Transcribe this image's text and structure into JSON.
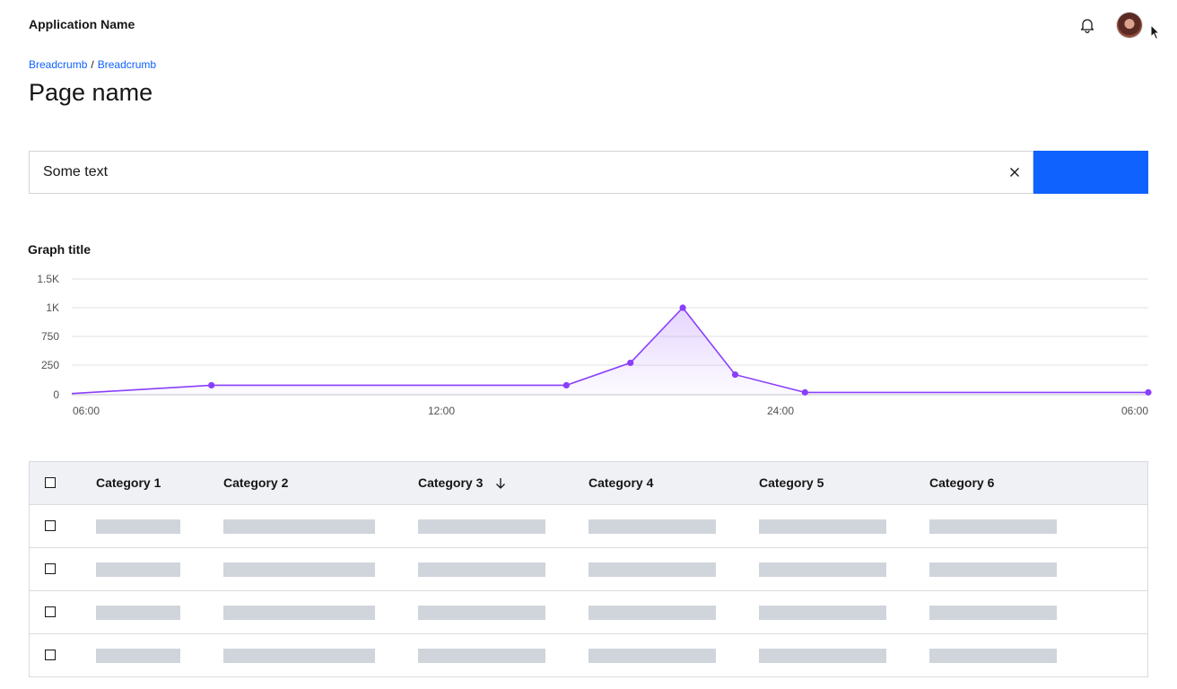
{
  "header": {
    "app_name": "Application Name",
    "notification_icon": "bell-icon",
    "avatar_icon": "user-avatar"
  },
  "breadcrumb": {
    "items": [
      "Breadcrumb",
      "Breadcrumb"
    ],
    "separator": "/"
  },
  "page": {
    "title": "Page name"
  },
  "search": {
    "value": "Some text",
    "clear_icon": "close-icon",
    "button_label": ""
  },
  "colors": {
    "accent": "#0f62fe",
    "series": "#8a3ffc",
    "skeleton": "#d0d5dc",
    "table_header": "#f0f1f5"
  },
  "chart_data": {
    "type": "area",
    "title": "Graph title",
    "xlabel": "",
    "ylabel": "",
    "x_ticks": [
      "06:00",
      "12:00",
      "24:00",
      "06:00"
    ],
    "y_ticks": [
      "0",
      "250",
      "750",
      "1K",
      "1.5K"
    ],
    "x_hours": [
      0,
      2.4,
      8.5,
      9.6,
      10.5,
      11.4,
      12.6,
      18.5
    ],
    "values": [
      10,
      80,
      80,
      290,
      1000,
      170,
      20,
      20
    ],
    "x_range_hours": [
      0,
      18.5
    ],
    "grid": true,
    "legend": "none"
  },
  "table": {
    "columns": [
      {
        "label": "Category 1",
        "sorted": false
      },
      {
        "label": "Category 2",
        "sorted": false
      },
      {
        "label": "Category 3",
        "sorted": true,
        "sort_icon": "arrow-down-icon"
      },
      {
        "label": "Category 4",
        "sorted": false
      },
      {
        "label": "Category 5",
        "sorted": false
      },
      {
        "label": "Category 6",
        "sorted": false
      }
    ],
    "row_count": 4,
    "rows_loading": true
  }
}
